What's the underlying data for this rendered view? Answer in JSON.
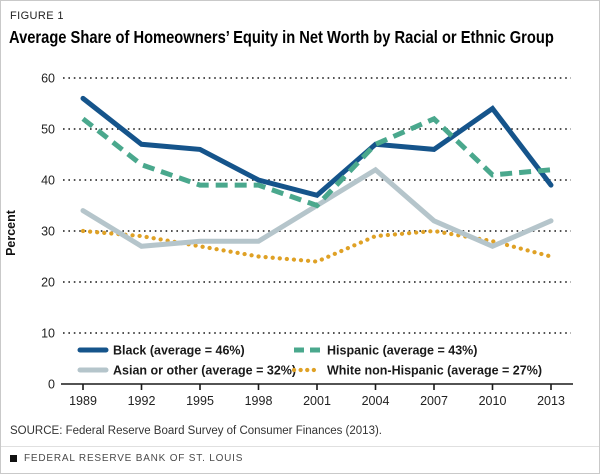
{
  "header": {
    "figure_label": "FIGURE 1",
    "title": "Average Share of Homeowners’ Equity in Net Worth by Racial or Ethnic Group"
  },
  "chart_data": {
    "type": "line",
    "title": "Average Share of Homeowners’ Equity in Net Worth by Racial or Ethnic Group",
    "xlabel": "",
    "ylabel": "Percent",
    "ylim": [
      0,
      60
    ],
    "yticks": [
      0,
      10,
      20,
      30,
      40,
      50,
      60
    ],
    "grid": "horizontal dotted",
    "legend_position": "bottom inside plot, two columns",
    "x": [
      "1989",
      "1992",
      "1995",
      "1998",
      "2001",
      "2004",
      "2007",
      "2010",
      "2013"
    ],
    "series": [
      {
        "name": "Black (average = 46%)",
        "values": [
          56,
          47,
          46,
          40,
          37,
          47,
          46,
          54,
          39
        ],
        "color": "#15548b",
        "style": "solid",
        "average_pct": 46
      },
      {
        "name": "Hispanic (average = 43%)",
        "values": [
          52,
          43,
          39,
          39,
          35,
          47,
          52,
          41,
          42
        ],
        "color": "#4aa88d",
        "style": "dashed",
        "average_pct": 43
      },
      {
        "name": "Asian or other (average = 32%)",
        "values": [
          34,
          27,
          28,
          28,
          35,
          42,
          32,
          27,
          32
        ],
        "color": "#b5c5cb",
        "style": "solid",
        "average_pct": 32
      },
      {
        "name": "White non-Hispanic (average = 27%)",
        "values": [
          30,
          29,
          27,
          25,
          24,
          29,
          30,
          28,
          25
        ],
        "color": "#dfa125",
        "style": "dotted",
        "average_pct": 27
      }
    ],
    "axis_color": "#1a1a1a",
    "grid_color": "#3a3a3a",
    "tick_label_color": "#222222"
  },
  "footer": {
    "source": "SOURCE: Federal Reserve Board Survey of Consumer Finances (2013).",
    "brand": "FEDERAL RESERVE BANK OF ST. LOUIS"
  }
}
